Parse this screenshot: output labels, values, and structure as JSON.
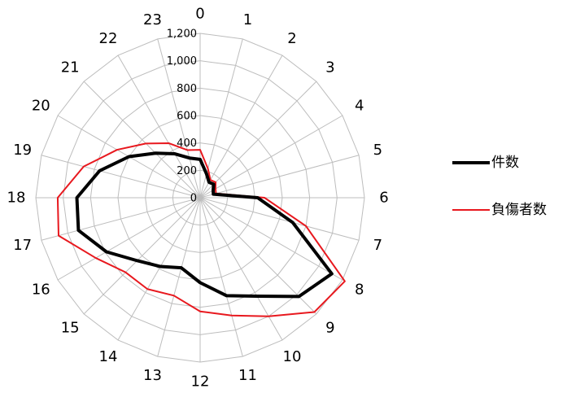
{
  "chart_data": {
    "type": "radar",
    "categories": [
      "0",
      "1",
      "2",
      "3",
      "4",
      "5",
      "6",
      "7",
      "8",
      "9",
      "10",
      "11",
      "12",
      "13",
      "14",
      "15",
      "16",
      "17",
      "18",
      "19",
      "20",
      "21",
      "22",
      "23"
    ],
    "r_ticks": [
      "0",
      "200",
      "400",
      "600",
      "800",
      "1,000",
      "1,200"
    ],
    "r_range": [
      0,
      1200
    ],
    "grid": true,
    "legend_position": "right",
    "series": [
      {
        "name": "件数",
        "color": "#000000",
        "values": [
          280,
          180,
          130,
          140,
          110,
          100,
          420,
          700,
          1110,
          1020,
          830,
          740,
          620,
          530,
          580,
          650,
          790,
          920,
          900,
          760,
          600,
          460,
          370,
          300
        ]
      },
      {
        "name": "負傷者数",
        "color": "#e8181e",
        "values": [
          350,
          220,
          150,
          160,
          130,
          120,
          470,
          800,
          1220,
          1180,
          1000,
          890,
          830,
          740,
          770,
          770,
          880,
          1070,
          1040,
          880,
          700,
          560,
          460,
          360
        ]
      }
    ]
  }
}
